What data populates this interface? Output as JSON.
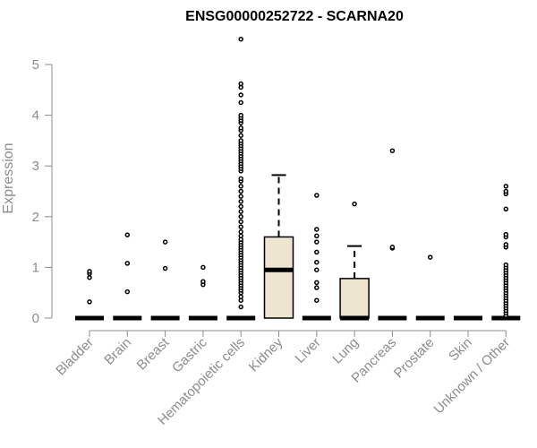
{
  "chart_data": {
    "type": "box",
    "title": "ENSG00000252722 - SCARNA20",
    "xlabel": "",
    "ylabel": "Expression",
    "ylim": [
      0,
      5.5
    ],
    "yticks": [
      0,
      1,
      2,
      3,
      4,
      5
    ],
    "box_fill": "#ede5cf",
    "categories": [
      "Bladder",
      "Brain",
      "Breast",
      "Gastric",
      "Hematopoietic cells",
      "Kidney",
      "Liver",
      "Lung",
      "Pancreas",
      "Prostate",
      "Skin",
      "Unknown / Other"
    ],
    "boxes": [
      {
        "q1": 0,
        "median": 0,
        "q3": 0,
        "whisker_low": 0,
        "whisker_high": 0,
        "outliers": [
          0.32,
          0.8,
          0.88,
          0.92
        ]
      },
      {
        "q1": 0,
        "median": 0,
        "q3": 0,
        "whisker_low": 0,
        "whisker_high": 0,
        "outliers": [
          0.52,
          1.08,
          1.64
        ]
      },
      {
        "q1": 0,
        "median": 0,
        "q3": 0,
        "whisker_low": 0,
        "whisker_high": 0,
        "outliers": [
          0.98,
          1.5
        ]
      },
      {
        "q1": 0,
        "median": 0,
        "q3": 0,
        "whisker_low": 0,
        "whisker_high": 0,
        "outliers": [
          0.66,
          0.72,
          1.0
        ]
      },
      {
        "q1": 0,
        "median": 0,
        "q3": 0,
        "whisker_low": 0,
        "whisker_high": 0,
        "outliers": [
          0.22,
          0.35,
          0.42,
          0.5,
          0.55,
          0.6,
          0.65,
          0.7,
          0.75,
          0.8,
          0.85,
          0.9,
          0.95,
          1.0,
          1.05,
          1.1,
          1.15,
          1.2,
          1.25,
          1.3,
          1.35,
          1.4,
          1.45,
          1.5,
          1.55,
          1.62,
          1.7,
          1.8,
          1.9,
          2.0,
          2.1,
          2.2,
          2.3,
          2.4,
          2.5,
          2.6,
          2.7,
          2.75,
          2.9,
          2.95,
          3.0,
          3.05,
          3.1,
          3.15,
          3.2,
          3.25,
          3.3,
          3.35,
          3.4,
          3.45,
          3.5,
          3.6,
          3.7,
          3.75,
          3.85,
          3.9,
          3.95,
          4.0,
          4.25,
          4.4,
          4.55,
          4.62,
          5.5
        ]
      },
      {
        "q1": 0,
        "median": 0.95,
        "q3": 1.6,
        "whisker_low": 0,
        "whisker_high": 2.82,
        "outliers": []
      },
      {
        "q1": 0,
        "median": 0,
        "q3": 0,
        "whisker_low": 0,
        "whisker_high": 0,
        "outliers": [
          0.35,
          0.6,
          0.7,
          0.95,
          1.1,
          1.3,
          1.5,
          1.62,
          1.75,
          2.42
        ]
      },
      {
        "q1": 0,
        "median": 0,
        "q3": 0.78,
        "whisker_low": 0,
        "whisker_high": 1.42,
        "outliers": [
          2.25
        ]
      },
      {
        "q1": 0,
        "median": 0,
        "q3": 0,
        "whisker_low": 0,
        "whisker_high": 0,
        "outliers": [
          1.38,
          1.4,
          3.3
        ]
      },
      {
        "q1": 0,
        "median": 0,
        "q3": 0,
        "whisker_low": 0,
        "whisker_high": 0,
        "outliers": [
          1.2
        ]
      },
      {
        "q1": 0,
        "median": 0,
        "q3": 0,
        "whisker_low": 0,
        "whisker_high": 0,
        "outliers": []
      },
      {
        "q1": 0,
        "median": 0,
        "q3": 0,
        "whisker_low": 0,
        "whisker_high": 0,
        "outliers": [
          0.05,
          0.1,
          0.15,
          0.2,
          0.25,
          0.3,
          0.35,
          0.4,
          0.45,
          0.5,
          0.55,
          0.6,
          0.65,
          0.7,
          0.75,
          0.8,
          0.85,
          0.9,
          0.95,
          1.0,
          1.05,
          1.4,
          1.45,
          1.6,
          1.65,
          2.15,
          2.45,
          2.5,
          2.6
        ]
      }
    ]
  }
}
